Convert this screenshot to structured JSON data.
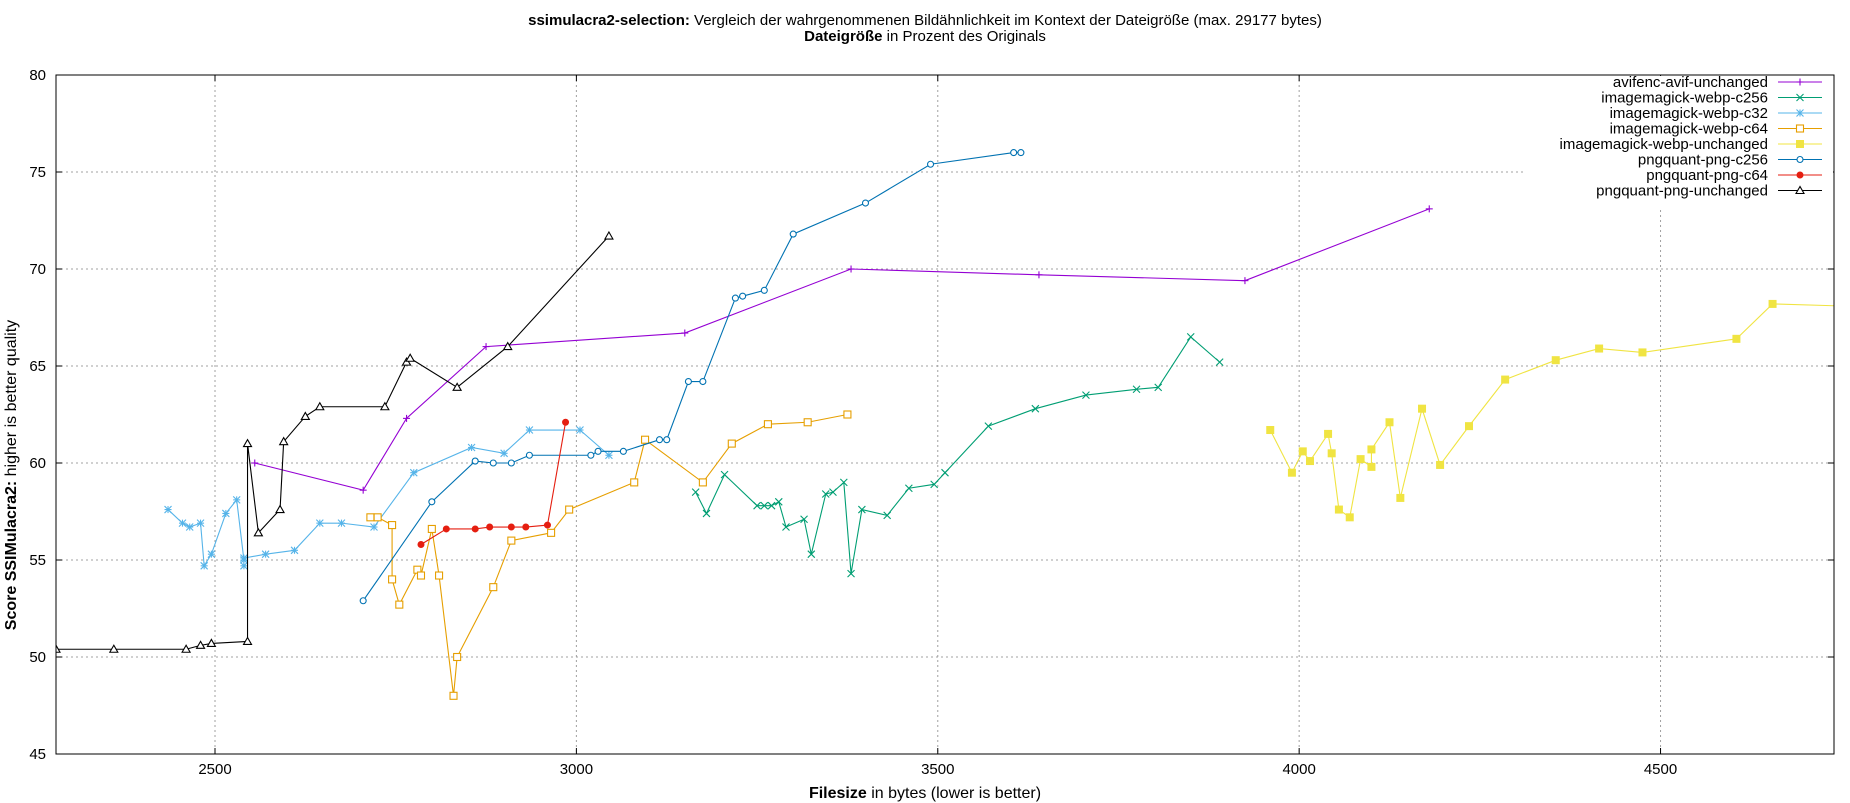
{
  "title": {
    "bold": "ssimulacra2-selection:",
    "rest": " Vergleich der wahrgenommenen Bildähnlichkeit im Kontext der Dateigröße (max. 29177 bytes)",
    "sub_bold": "Dateigröße",
    "sub_rest": " in Prozent des Originals"
  },
  "xaxis": {
    "bold": "Filesize",
    "rest": " in bytes (lower is better)"
  },
  "yaxis": {
    "bold": "Score SSIMulacra2:",
    "rest": " higher is better quality"
  },
  "chart_data": {
    "type": "line",
    "xlim": [
      2280,
      4740
    ],
    "ylim": [
      45,
      80
    ],
    "xticks": [
      2500,
      3000,
      3500,
      4000,
      4500
    ],
    "yticks": [
      45,
      50,
      55,
      60,
      65,
      70,
      75,
      80
    ],
    "grid": true,
    "legend_position": "top-right",
    "series": [
      {
        "name": "avifenc-avif-unchanged",
        "color": "#9400d3",
        "marker": "plus",
        "points": [
          [
            2555,
            60.0
          ],
          [
            2705,
            58.6
          ],
          [
            2765,
            62.3
          ],
          [
            2875,
            66.0
          ],
          [
            3150,
            66.7
          ],
          [
            3380,
            70.0
          ],
          [
            3640,
            69.7
          ],
          [
            3925,
            69.4
          ],
          [
            4180,
            73.1
          ]
        ]
      },
      {
        "name": "imagemagick-webp-c256",
        "color": "#009e73",
        "marker": "x",
        "points": [
          [
            3165,
            58.5
          ],
          [
            3180,
            57.4
          ],
          [
            3205,
            59.4
          ],
          [
            3250,
            57.8
          ],
          [
            3260,
            57.8
          ],
          [
            3270,
            57.8
          ],
          [
            3280,
            58.0
          ],
          [
            3290,
            56.7
          ],
          [
            3315,
            57.1
          ],
          [
            3325,
            55.3
          ],
          [
            3345,
            58.4
          ],
          [
            3355,
            58.5
          ],
          [
            3370,
            59.0
          ],
          [
            3380,
            54.3
          ],
          [
            3395,
            57.6
          ],
          [
            3430,
            57.3
          ],
          [
            3460,
            58.7
          ],
          [
            3495,
            58.9
          ],
          [
            3510,
            59.5
          ],
          [
            3570,
            61.9
          ],
          [
            3635,
            62.8
          ],
          [
            3705,
            63.5
          ],
          [
            3775,
            63.8
          ],
          [
            3805,
            63.9
          ],
          [
            3850,
            66.5
          ],
          [
            3890,
            65.2
          ]
        ]
      },
      {
        "name": "imagemagick-webp-c32",
        "color": "#56b4e9",
        "marker": "star",
        "points": [
          [
            2435,
            57.6
          ],
          [
            2455,
            56.9
          ],
          [
            2465,
            56.7
          ],
          [
            2480,
            56.9
          ],
          [
            2485,
            54.7
          ],
          [
            2495,
            55.3
          ],
          [
            2515,
            57.4
          ],
          [
            2530,
            58.1
          ],
          [
            2540,
            55.0
          ],
          [
            2540,
            54.7
          ],
          [
            2540,
            55.1
          ],
          [
            2570,
            55.3
          ],
          [
            2610,
            55.5
          ],
          [
            2645,
            56.9
          ],
          [
            2675,
            56.9
          ],
          [
            2720,
            56.7
          ],
          [
            2775,
            59.5
          ],
          [
            2855,
            60.8
          ],
          [
            2900,
            60.5
          ],
          [
            2935,
            61.7
          ],
          [
            3005,
            61.7
          ],
          [
            3045,
            60.4
          ]
        ]
      },
      {
        "name": "imagemagick-webp-c64",
        "color": "#e69f00",
        "marker": "square",
        "points": [
          [
            2715,
            57.2
          ],
          [
            2725,
            57.2
          ],
          [
            2745,
            56.8
          ],
          [
            2745,
            54.0
          ],
          [
            2755,
            52.7
          ],
          [
            2780,
            54.5
          ],
          [
            2785,
            54.2
          ],
          [
            2800,
            56.6
          ],
          [
            2810,
            54.2
          ],
          [
            2830,
            48.0
          ],
          [
            2835,
            50.0
          ],
          [
            2885,
            53.6
          ],
          [
            2910,
            56.0
          ],
          [
            2965,
            56.4
          ],
          [
            2990,
            57.6
          ],
          [
            3080,
            59.0
          ],
          [
            3095,
            61.2
          ],
          [
            3175,
            59.0
          ],
          [
            3215,
            61.0
          ],
          [
            3265,
            62.0
          ],
          [
            3320,
            62.1
          ],
          [
            3375,
            62.5
          ]
        ]
      },
      {
        "name": "imagemagick-webp-unchanged",
        "color": "#f0e442",
        "marker": "square-filled",
        "points": [
          [
            3960,
            61.7
          ],
          [
            3990,
            59.5
          ],
          [
            4005,
            60.6
          ],
          [
            4015,
            60.1
          ],
          [
            4040,
            61.5
          ],
          [
            4045,
            60.5
          ],
          [
            4055,
            57.6
          ],
          [
            4070,
            57.2
          ],
          [
            4085,
            60.2
          ],
          [
            4100,
            59.8
          ],
          [
            4100,
            60.7
          ],
          [
            4125,
            62.1
          ],
          [
            4140,
            58.2
          ],
          [
            4170,
            62.8
          ],
          [
            4195,
            59.9
          ],
          [
            4235,
            61.9
          ],
          [
            4285,
            64.3
          ],
          [
            4355,
            65.3
          ],
          [
            4415,
            65.9
          ],
          [
            4475,
            65.7
          ],
          [
            4605,
            66.4
          ],
          [
            4655,
            68.2
          ],
          [
            4745,
            68.1
          ]
        ]
      },
      {
        "name": "pngquant-png-c256",
        "color": "#0072b2",
        "marker": "circle",
        "points": [
          [
            2705,
            52.9
          ],
          [
            2800,
            58.0
          ],
          [
            2860,
            60.1
          ],
          [
            2885,
            60.0
          ],
          [
            2910,
            60.0
          ],
          [
            2935,
            60.4
          ],
          [
            3020,
            60.4
          ],
          [
            3030,
            60.6
          ],
          [
            3065,
            60.6
          ],
          [
            3115,
            61.2
          ],
          [
            3125,
            61.2
          ],
          [
            3155,
            64.2
          ],
          [
            3175,
            64.2
          ],
          [
            3220,
            68.5
          ],
          [
            3230,
            68.6
          ],
          [
            3260,
            68.9
          ],
          [
            3300,
            71.8
          ],
          [
            3400,
            73.4
          ],
          [
            3490,
            75.4
          ],
          [
            3605,
            76.0
          ],
          [
            3615,
            76.0
          ]
        ]
      },
      {
        "name": "pngquant-png-c64",
        "color": "#e51e10",
        "marker": "circle-filled",
        "points": [
          [
            2785,
            55.8
          ],
          [
            2820,
            56.6
          ],
          [
            2860,
            56.6
          ],
          [
            2880,
            56.7
          ],
          [
            2910,
            56.7
          ],
          [
            2930,
            56.7
          ],
          [
            2960,
            56.8
          ],
          [
            2985,
            62.1
          ]
        ]
      },
      {
        "name": "pngquant-png-unchanged",
        "color": "#000000",
        "marker": "triangle",
        "points": [
          [
            2280,
            50.4
          ],
          [
            2360,
            50.4
          ],
          [
            2460,
            50.4
          ],
          [
            2480,
            50.6
          ],
          [
            2495,
            50.7
          ],
          [
            2545,
            50.8
          ],
          [
            2545,
            61.0
          ],
          [
            2560,
            56.4
          ],
          [
            2590,
            57.6
          ],
          [
            2595,
            61.1
          ],
          [
            2625,
            62.4
          ],
          [
            2645,
            62.9
          ],
          [
            2735,
            62.9
          ],
          [
            2765,
            65.2
          ],
          [
            2770,
            65.4
          ],
          [
            2835,
            63.9
          ],
          [
            2905,
            66.0
          ],
          [
            3045,
            71.7
          ]
        ]
      }
    ]
  }
}
